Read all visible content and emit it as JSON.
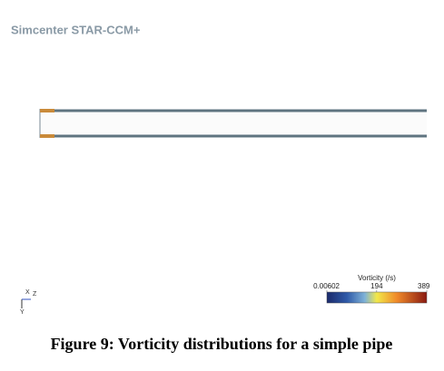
{
  "header": {
    "brand": "Simcenter STAR-CCM+"
  },
  "colorbar": {
    "title": "Vorticity (/s)",
    "lim": [
      0.00602,
      389
    ],
    "ticks": [
      0.00602,
      194,
      389
    ]
  },
  "triad": {
    "x": "X",
    "z": "Z",
    "y": "Y"
  },
  "caption": "Figure 9: Vorticity distributions for a simple pipe"
}
